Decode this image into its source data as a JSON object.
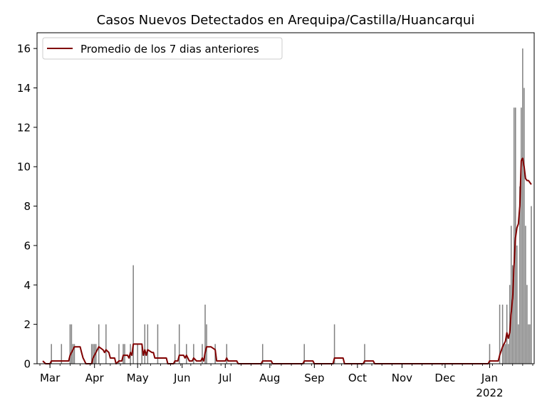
{
  "chart_data": {
    "type": "bar",
    "title": "Casos Nuevos Detectados en Arequipa/Castilla/Huancarqui",
    "xlabel": "",
    "ylabel": "",
    "x_start": "2021-02-20",
    "x_end": "2022-02-01",
    "ylim": [
      0,
      16.8
    ],
    "y_ticks": [
      0,
      2,
      4,
      6,
      8,
      10,
      12,
      14,
      16
    ],
    "x_ticks": [
      {
        "date": "2021-03-01",
        "label": "Mar"
      },
      {
        "date": "2021-04-01",
        "label": "Apr"
      },
      {
        "date": "2021-05-01",
        "label": "May"
      },
      {
        "date": "2021-06-01",
        "label": "Jun"
      },
      {
        "date": "2021-07-01",
        "label": "Jul"
      },
      {
        "date": "2021-08-01",
        "label": "Aug"
      },
      {
        "date": "2021-09-01",
        "label": "Sep"
      },
      {
        "date": "2021-10-01",
        "label": "Oct"
      },
      {
        "date": "2021-11-01",
        "label": "Nov"
      },
      {
        "date": "2021-12-01",
        "label": "Dec"
      },
      {
        "date": "2022-01-01",
        "label": "Jan"
      }
    ],
    "year_label": "2022",
    "grid": false,
    "legend_position": "top-left",
    "bar_color": "#808080",
    "line_color": "#800000",
    "series": [
      {
        "kind": "bar",
        "values": [
          [
            "2021-03-02",
            1
          ],
          [
            "2021-03-09",
            1
          ],
          [
            "2021-03-15",
            2
          ],
          [
            "2021-03-16",
            2
          ],
          [
            "2021-03-17",
            1
          ],
          [
            "2021-03-18",
            1
          ],
          [
            "2021-03-30",
            1
          ],
          [
            "2021-03-31",
            1
          ],
          [
            "2021-04-01",
            1
          ],
          [
            "2021-04-02",
            1
          ],
          [
            "2021-04-04",
            2
          ],
          [
            "2021-04-09",
            2
          ],
          [
            "2021-04-18",
            1
          ],
          [
            "2021-04-21",
            1
          ],
          [
            "2021-04-22",
            1
          ],
          [
            "2021-04-26",
            1
          ],
          [
            "2021-04-28",
            5
          ],
          [
            "2021-05-01",
            1
          ],
          [
            "2021-05-04",
            1
          ],
          [
            "2021-05-06",
            2
          ],
          [
            "2021-05-08",
            2
          ],
          [
            "2021-05-15",
            2
          ],
          [
            "2021-05-27",
            1
          ],
          [
            "2021-05-30",
            2
          ],
          [
            "2021-06-04",
            1
          ],
          [
            "2021-06-09",
            1
          ],
          [
            "2021-06-15",
            1
          ],
          [
            "2021-06-17",
            3
          ],
          [
            "2021-06-18",
            2
          ],
          [
            "2021-06-24",
            1
          ],
          [
            "2021-07-02",
            1
          ],
          [
            "2021-07-27",
            1
          ],
          [
            "2021-08-25",
            1
          ],
          [
            "2021-09-15",
            2
          ],
          [
            "2021-10-06",
            1
          ],
          [
            "2022-01-01",
            1
          ],
          [
            "2022-01-08",
            3
          ],
          [
            "2022-01-10",
            3
          ],
          [
            "2022-01-11",
            1
          ],
          [
            "2022-01-12",
            1
          ],
          [
            "2022-01-13",
            3
          ],
          [
            "2022-01-14",
            1
          ],
          [
            "2022-01-15",
            4
          ],
          [
            "2022-01-16",
            7
          ],
          [
            "2022-01-17",
            5
          ],
          [
            "2022-01-18",
            13
          ],
          [
            "2022-01-19",
            13
          ],
          [
            "2022-01-20",
            6
          ],
          [
            "2022-01-21",
            2
          ],
          [
            "2022-01-22",
            9
          ],
          [
            "2022-01-23",
            13
          ],
          [
            "2022-01-24",
            16
          ],
          [
            "2022-01-25",
            14
          ],
          [
            "2022-01-26",
            7
          ],
          [
            "2022-01-27",
            4
          ],
          [
            "2022-01-28",
            2
          ],
          [
            "2022-01-29",
            2
          ],
          [
            "2022-01-30",
            8
          ]
        ]
      },
      {
        "kind": "line",
        "name": "Promedio de los 7 dias anteriores",
        "points": [
          [
            "2021-02-24",
            0.14
          ],
          [
            "2021-02-26",
            0
          ],
          [
            "2021-03-01",
            0
          ],
          [
            "2021-03-02",
            0.14
          ],
          [
            "2021-03-14",
            0.14
          ],
          [
            "2021-03-15",
            0.43
          ],
          [
            "2021-03-17",
            0.71
          ],
          [
            "2021-03-18",
            0.86
          ],
          [
            "2021-03-22",
            0.86
          ],
          [
            "2021-03-23",
            0.57
          ],
          [
            "2021-03-24",
            0.3
          ],
          [
            "2021-03-26",
            0
          ],
          [
            "2021-03-30",
            0
          ],
          [
            "2021-03-31",
            0.29
          ],
          [
            "2021-04-02",
            0.57
          ],
          [
            "2021-04-04",
            0.86
          ],
          [
            "2021-04-07",
            0.7
          ],
          [
            "2021-04-08",
            0.57
          ],
          [
            "2021-04-09",
            0.71
          ],
          [
            "2021-04-11",
            0.57
          ],
          [
            "2021-04-12",
            0.29
          ],
          [
            "2021-04-15",
            0.29
          ],
          [
            "2021-04-16",
            0
          ],
          [
            "2021-04-18",
            0.14
          ],
          [
            "2021-04-20",
            0.14
          ],
          [
            "2021-04-21",
            0.43
          ],
          [
            "2021-04-24",
            0.43
          ],
          [
            "2021-04-25",
            0.29
          ],
          [
            "2021-04-26",
            0.57
          ],
          [
            "2021-04-27",
            0.43
          ],
          [
            "2021-04-28",
            1
          ],
          [
            "2021-05-04",
            1
          ],
          [
            "2021-05-05",
            0.43
          ],
          [
            "2021-05-06",
            0.71
          ],
          [
            "2021-05-07",
            0.43
          ],
          [
            "2021-05-08",
            0.71
          ],
          [
            "2021-05-11",
            0.57
          ],
          [
            "2021-05-12",
            0.57
          ],
          [
            "2021-05-13",
            0.29
          ],
          [
            "2021-05-21",
            0.29
          ],
          [
            "2021-05-22",
            0
          ],
          [
            "2021-05-26",
            0
          ],
          [
            "2021-05-27",
            0.14
          ],
          [
            "2021-05-29",
            0.14
          ],
          [
            "2021-05-30",
            0.43
          ],
          [
            "2021-06-02",
            0.43
          ],
          [
            "2021-06-03",
            0.29
          ],
          [
            "2021-06-04",
            0.43
          ],
          [
            "2021-06-06",
            0.14
          ],
          [
            "2021-06-08",
            0.14
          ],
          [
            "2021-06-09",
            0.29
          ],
          [
            "2021-06-11",
            0.14
          ],
          [
            "2021-06-14",
            0.14
          ],
          [
            "2021-06-15",
            0.29
          ],
          [
            "2021-06-16",
            0.14
          ],
          [
            "2021-06-17",
            0.57
          ],
          [
            "2021-06-18",
            0.86
          ],
          [
            "2021-06-21",
            0.86
          ],
          [
            "2021-06-24",
            0.71
          ],
          [
            "2021-06-25",
            0.14
          ],
          [
            "2021-06-30",
            0.14
          ],
          [
            "2021-07-01",
            0.14
          ],
          [
            "2021-07-02",
            0.29
          ],
          [
            "2021-07-03",
            0.14
          ],
          [
            "2021-07-09",
            0.14
          ],
          [
            "2021-07-10",
            0
          ],
          [
            "2021-07-26",
            0
          ],
          [
            "2021-07-27",
            0.14
          ],
          [
            "2021-08-02",
            0.14
          ],
          [
            "2021-08-03",
            0
          ],
          [
            "2021-08-24",
            0
          ],
          [
            "2021-08-25",
            0.14
          ],
          [
            "2021-08-31",
            0.14
          ],
          [
            "2021-09-01",
            0
          ],
          [
            "2021-09-14",
            0
          ],
          [
            "2021-09-15",
            0.29
          ],
          [
            "2021-09-21",
            0.29
          ],
          [
            "2021-09-22",
            0
          ],
          [
            "2021-10-05",
            0
          ],
          [
            "2021-10-06",
            0.14
          ],
          [
            "2021-10-12",
            0.14
          ],
          [
            "2021-10-13",
            0
          ],
          [
            "2021-12-31",
            0
          ],
          [
            "2022-01-01",
            0.14
          ],
          [
            "2022-01-07",
            0.14
          ],
          [
            "2022-01-08",
            0.43
          ],
          [
            "2022-01-10",
            0.86
          ],
          [
            "2022-01-11",
            1
          ],
          [
            "2022-01-12",
            1.14
          ],
          [
            "2022-01-13",
            1.57
          ],
          [
            "2022-01-14",
            1.29
          ],
          [
            "2022-01-15",
            1.57
          ],
          [
            "2022-01-16",
            2.57
          ],
          [
            "2022-01-17",
            3.3
          ],
          [
            "2022-01-18",
            5
          ],
          [
            "2022-01-19",
            6.4
          ],
          [
            "2022-01-20",
            6.9
          ],
          [
            "2022-01-21",
            7.1
          ],
          [
            "2022-01-22",
            8
          ],
          [
            "2022-01-23",
            10.3
          ],
          [
            "2022-01-24",
            10.43
          ],
          [
            "2022-01-25",
            10
          ],
          [
            "2022-01-26",
            9.4
          ],
          [
            "2022-01-27",
            9.3
          ],
          [
            "2022-01-28",
            9.3
          ],
          [
            "2022-01-29",
            9.2
          ],
          [
            "2022-01-30",
            9.1
          ]
        ]
      }
    ]
  }
}
